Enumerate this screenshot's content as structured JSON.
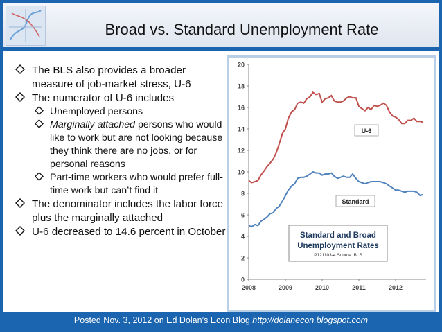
{
  "slide": {
    "title": "Broad vs. Standard Unemployment Rate",
    "bullets": [
      "The BLS also provides a broader measure of job-market stress, U-6",
      "The numerator of U-6 includes"
    ],
    "sub_bullets": [
      {
        "text": "Unemployed persons"
      },
      {
        "italic": "Marginally attached",
        "text": " persons who would like to work but are not looking because they think there are no jobs, or for personal reasons"
      },
      {
        "text": "Part-time workers who would prefer full-time work but can’t find it"
      }
    ],
    "bullets_after": [
      "The denominator includes the labor force plus the marginally attached",
      "U-6 decreased to 14.6 percent in October"
    ],
    "footer_text": "Posted Nov. 3, 2012 on Ed Dolan’s Econ Blog",
    "footer_url": "http://dolanecon.blogspot.com"
  },
  "chart_data": {
    "type": "line",
    "title": "Standard and Broad Unemployment Rates",
    "subtitle": "P121103-4 Source: BLS",
    "ylim": [
      0,
      20
    ],
    "yticks": [
      "0",
      "2",
      "4",
      "6",
      "8",
      "10",
      "12",
      "14",
      "16",
      "18",
      "20"
    ],
    "xlim": [
      2008,
      2012.83
    ],
    "xticks": [
      "2008",
      "2009",
      "2010",
      "2011",
      "2012"
    ],
    "grid": false,
    "series": [
      {
        "name": "U-6",
        "color": "#c0504d",
        "x": [
          2008.0,
          2008.08,
          2008.17,
          2008.25,
          2008.33,
          2008.42,
          2008.5,
          2008.58,
          2008.67,
          2008.75,
          2008.83,
          2008.92,
          2009.0,
          2009.08,
          2009.17,
          2009.25,
          2009.33,
          2009.42,
          2009.5,
          2009.58,
          2009.67,
          2009.75,
          2009.83,
          2009.92,
          2010.0,
          2010.08,
          2010.17,
          2010.25,
          2010.33,
          2010.42,
          2010.5,
          2010.58,
          2010.67,
          2010.75,
          2010.83,
          2010.92,
          2011.0,
          2011.08,
          2011.17,
          2011.25,
          2011.33,
          2011.42,
          2011.5,
          2011.58,
          2011.67,
          2011.75,
          2011.83,
          2011.92,
          2012.0,
          2012.08,
          2012.17,
          2012.25,
          2012.33,
          2012.42,
          2012.5,
          2012.58,
          2012.67,
          2012.75
        ],
        "values": [
          9.2,
          9.0,
          9.1,
          9.2,
          9.7,
          10.1,
          10.5,
          10.8,
          11.2,
          11.8,
          12.6,
          13.6,
          14.0,
          15.0,
          15.6,
          15.8,
          16.4,
          16.5,
          16.4,
          16.8,
          17.0,
          17.4,
          17.2,
          17.3,
          16.5,
          16.8,
          16.9,
          17.1,
          16.6,
          16.5,
          16.5,
          16.6,
          16.9,
          17.0,
          16.9,
          16.9,
          16.1,
          15.9,
          15.7,
          16.0,
          15.8,
          16.2,
          16.1,
          16.2,
          16.4,
          16.2,
          15.6,
          15.2,
          15.1,
          14.9,
          14.5,
          14.5,
          14.8,
          14.8,
          15.0,
          14.7,
          14.7,
          14.6
        ]
      },
      {
        "name": "Standard",
        "color": "#4f81bd",
        "x": [
          2008.0,
          2008.08,
          2008.17,
          2008.25,
          2008.33,
          2008.42,
          2008.5,
          2008.58,
          2008.67,
          2008.75,
          2008.83,
          2008.92,
          2009.0,
          2009.08,
          2009.17,
          2009.25,
          2009.33,
          2009.42,
          2009.5,
          2009.58,
          2009.67,
          2009.75,
          2009.83,
          2009.92,
          2010.0,
          2010.08,
          2010.17,
          2010.25,
          2010.33,
          2010.42,
          2010.5,
          2010.58,
          2010.67,
          2010.75,
          2010.83,
          2010.92,
          2011.0,
          2011.08,
          2011.17,
          2011.25,
          2011.33,
          2011.42,
          2011.5,
          2011.58,
          2011.67,
          2011.75,
          2011.83,
          2011.92,
          2012.0,
          2012.08,
          2012.17,
          2012.25,
          2012.33,
          2012.42,
          2012.5,
          2012.58,
          2012.67,
          2012.75
        ],
        "values": [
          5.0,
          4.9,
          5.1,
          5.0,
          5.4,
          5.6,
          5.8,
          6.1,
          6.2,
          6.6,
          6.8,
          7.3,
          7.8,
          8.3,
          8.7,
          8.9,
          9.4,
          9.5,
          9.5,
          9.6,
          9.8,
          10.0,
          9.9,
          9.9,
          9.7,
          9.8,
          9.8,
          9.9,
          9.6,
          9.4,
          9.5,
          9.6,
          9.5,
          9.5,
          9.8,
          9.4,
          9.1,
          9.0,
          8.9,
          9.0,
          9.1,
          9.1,
          9.1,
          9.1,
          9.0,
          8.9,
          8.7,
          8.5,
          8.3,
          8.3,
          8.2,
          8.1,
          8.2,
          8.2,
          8.2,
          8.1,
          7.8,
          7.9
        ]
      }
    ]
  }
}
